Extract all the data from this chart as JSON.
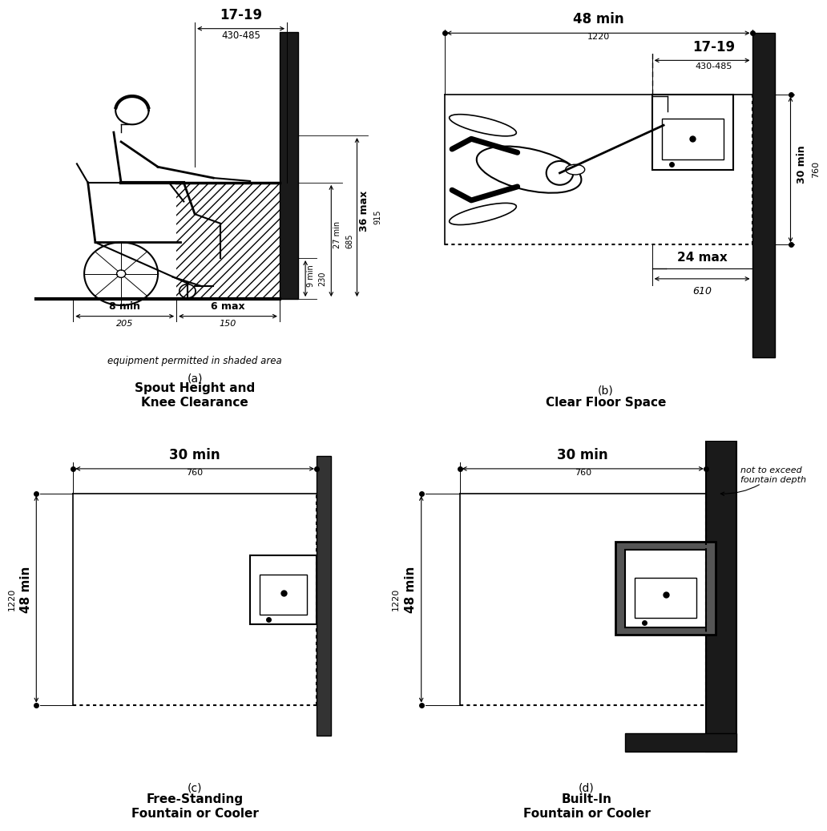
{
  "bg_color": "#ffffff",
  "line_color": "#000000",
  "panel_a": {
    "title_label": "(a)",
    "title_text": "Spout Height and\nKnee Clearance",
    "dim_17_19": "17-19",
    "dim_430_485": "430-485",
    "dim_9min": "9 min",
    "dim_230": "230",
    "dim_27min": "27 min",
    "dim_685": "685",
    "dim_36max": "36 max",
    "dim_915": "915",
    "dim_8min": "8 min",
    "dim_205": "205",
    "dim_6max": "6 max",
    "dim_150": "150",
    "note": "equipment permitted in shaded area"
  },
  "panel_b": {
    "title_label": "(b)",
    "title_text": "Clear Floor Space",
    "dim_48min": "48 min",
    "dim_1220": "1220",
    "dim_17_19": "17-19",
    "dim_430_485": "430-485",
    "dim_30min": "30 min",
    "dim_760": "760",
    "dim_24max": "24 max",
    "dim_610": "610"
  },
  "panel_c": {
    "title_label": "(c)",
    "title_text": "Free-Standing\nFountain or Cooler",
    "dim_30min": "30 min",
    "dim_760": "760",
    "dim_48min": "48 min",
    "dim_1220": "1220"
  },
  "panel_d": {
    "title_label": "(d)",
    "title_text": "Built-In\nFountain or Cooler",
    "dim_30min": "30 min",
    "dim_760": "760",
    "dim_48min": "48 min",
    "dim_1220": "1220",
    "note": "not to exceed\nfountain depth"
  }
}
